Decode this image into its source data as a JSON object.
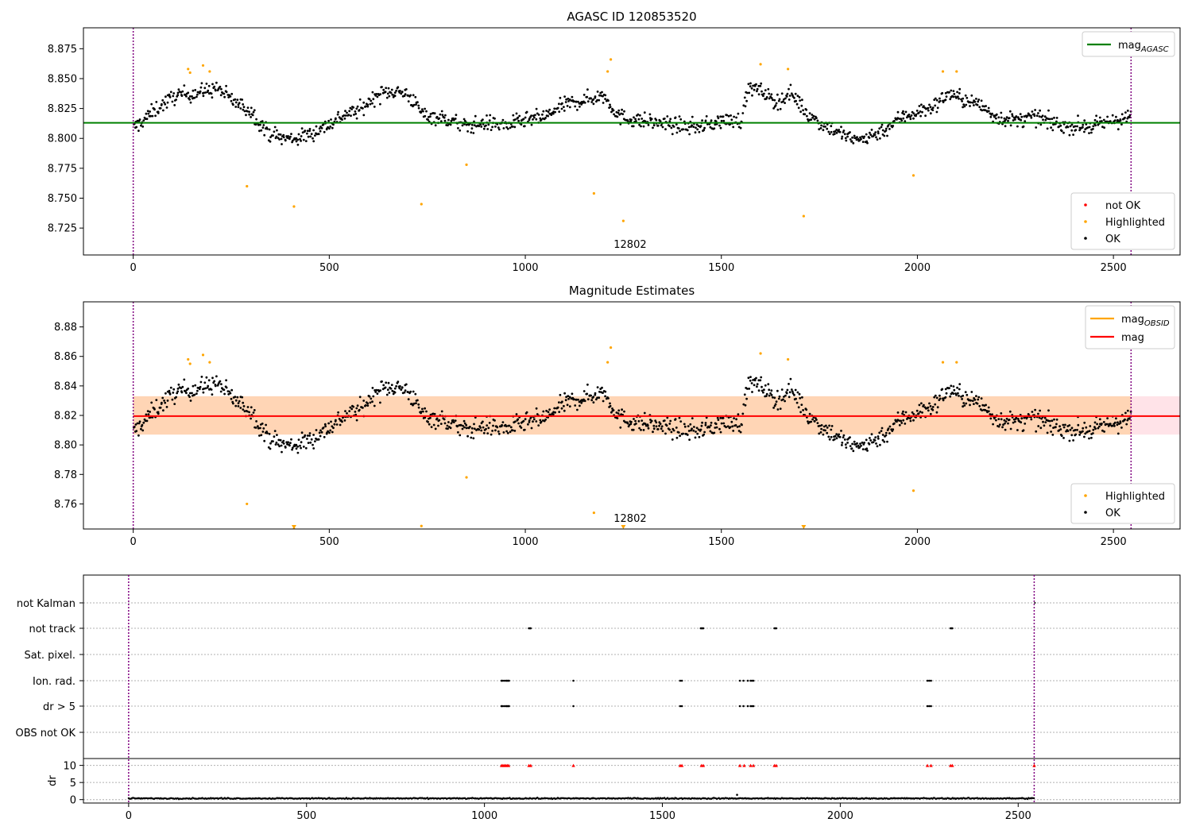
{
  "chart_data": [
    {
      "type": "scatter",
      "title": "AGASC ID 120853520",
      "xlim": [
        -127,
        2670
      ],
      "ylim": [
        8.7025,
        8.8925
      ],
      "xticks": [
        0,
        500,
        1000,
        1500,
        2000,
        2500
      ],
      "yticks": [
        8.725,
        8.75,
        8.775,
        8.8,
        8.825,
        8.85,
        8.875
      ],
      "ytick_decimals": 3,
      "vlines": [
        0,
        2545
      ],
      "hline": {
        "label": "mag_AGASC",
        "y": 8.813,
        "x": [
          -127,
          2670
        ],
        "color": "#008000"
      },
      "annotation": {
        "text": "12802",
        "x": 1270,
        "y": 8.7095
      },
      "legend_lines": [
        {
          "name": "mag",
          "sub": "AGASC",
          "color": "#008000"
        }
      ],
      "legend_points": [
        {
          "name": "not OK",
          "color": "#ff0000"
        },
        {
          "name": "Highlighted",
          "color": "#ffa500"
        },
        {
          "name": "OK",
          "color": "#000000"
        }
      ],
      "series": [
        {
          "name": "OK",
          "color": "#000000",
          "n_points": 2545,
          "x_range": [
            0,
            2545
          ],
          "segment_means": [
            [
              0,
              8.808
            ],
            [
              60,
              8.825
            ],
            [
              110,
              8.836
            ],
            [
              160,
              8.838
            ],
            [
              215,
              8.842
            ],
            [
              260,
              8.83
            ],
            [
              300,
              8.823
            ],
            [
              340,
              8.806
            ],
            [
              380,
              8.8
            ],
            [
              420,
              8.8
            ],
            [
              460,
              8.805
            ],
            [
              500,
              8.812
            ],
            [
              540,
              8.82
            ],
            [
              580,
              8.824
            ],
            [
              620,
              8.836
            ],
            [
              660,
              8.84
            ],
            [
              700,
              8.837
            ],
            [
              740,
              8.82
            ],
            [
              800,
              8.816
            ],
            [
              850,
              8.81
            ],
            [
              900,
              8.813
            ],
            [
              950,
              8.811
            ],
            [
              1000,
              8.815
            ],
            [
              1050,
              8.818
            ],
            [
              1100,
              8.828
            ],
            [
              1150,
              8.832
            ],
            [
              1200,
              8.836
            ],
            [
              1240,
              8.818
            ],
            [
              1290,
              8.815
            ],
            [
              1340,
              8.813
            ],
            [
              1400,
              8.81
            ],
            [
              1450,
              8.81
            ],
            [
              1500,
              8.815
            ],
            [
              1550,
              8.815
            ],
            [
              1570,
              8.843
            ],
            [
              1610,
              8.838
            ],
            [
              1640,
              8.83
            ],
            [
              1680,
              8.838
            ],
            [
              1720,
              8.82
            ],
            [
              1760,
              8.812
            ],
            [
              1800,
              8.805
            ],
            [
              1840,
              8.798
            ],
            [
              1880,
              8.802
            ],
            [
              1920,
              8.808
            ],
            [
              1960,
              8.818
            ],
            [
              2000,
              8.822
            ],
            [
              2040,
              8.826
            ],
            [
              2080,
              8.838
            ],
            [
              2120,
              8.832
            ],
            [
              2160,
              8.828
            ],
            [
              2200,
              8.818
            ],
            [
              2250,
              8.815
            ],
            [
              2300,
              8.818
            ],
            [
              2350,
              8.812
            ],
            [
              2400,
              8.81
            ],
            [
              2450,
              8.81
            ],
            [
              2500,
              8.815
            ],
            [
              2545,
              8.818
            ]
          ],
          "scatter": 0.006
        },
        {
          "name": "Highlighted",
          "color": "#ffa500",
          "points": [
            [
              140,
              8.858
            ],
            [
              145,
              8.855
            ],
            [
              178,
              8.861
            ],
            [
              195,
              8.856
            ],
            [
              290,
              8.76
            ],
            [
              410,
              8.743
            ],
            [
              735,
              8.745
            ],
            [
              850,
              8.778
            ],
            [
              1175,
              8.754
            ],
            [
              1210,
              8.856
            ],
            [
              1218,
              8.866
            ],
            [
              1250,
              8.731
            ],
            [
              1600,
              8.862
            ],
            [
              1670,
              8.858
            ],
            [
              1710,
              8.735
            ],
            [
              1990,
              8.769
            ],
            [
              2065,
              8.856
            ],
            [
              2100,
              8.856
            ]
          ]
        }
      ]
    },
    {
      "type": "scatter",
      "title": "Magnitude Estimates",
      "xlim": [
        -127,
        2670
      ],
      "ylim": [
        8.743,
        8.897
      ],
      "xticks": [
        0,
        500,
        1000,
        1500,
        2000,
        2500
      ],
      "yticks": [
        8.76,
        8.78,
        8.8,
        8.82,
        8.84,
        8.86,
        8.88
      ],
      "ytick_decimals": 2,
      "vlines": [
        0,
        2545
      ],
      "band": {
        "y_low": 8.807,
        "y_high": 8.833,
        "x": [
          0,
          2670
        ]
      },
      "hline": {
        "label": "mag",
        "y": 8.8195,
        "x": [
          0,
          2670
        ],
        "color": "#ff0000"
      },
      "annotation": {
        "text": "12802",
        "x": 1270,
        "y": 8.7465
      },
      "clipped_markers": [
        410,
        1250,
        1710
      ],
      "legend_lines": [
        {
          "name": "mag",
          "sub": "OBSID",
          "color": "#ffa500"
        },
        {
          "name": "mag",
          "sub": "",
          "color": "#ff0000"
        }
      ],
      "legend_points": [
        {
          "name": "Highlighted",
          "color": "#ffa500"
        },
        {
          "name": "OK",
          "color": "#000000"
        }
      ],
      "series": [
        {
          "name": "OK",
          "color": "#000000",
          "same_as_panel": 0
        },
        {
          "name": "Highlighted",
          "color": "#ffa500",
          "same_as_panel": 0
        }
      ]
    },
    {
      "type": "scatter",
      "title": "",
      "xlim": [
        -127,
        2955
      ],
      "xticks": [
        0,
        500,
        1000,
        1500,
        2000,
        2500
      ],
      "vlines": [
        0,
        2545
      ],
      "flag_rows": [
        "not Kalman",
        "not track",
        "Sat. pixel.",
        "Ion. rad.",
        "dr > 5",
        "OBS not OK"
      ],
      "flags": {
        "not track": [
          1125,
          1128,
          1130,
          1608,
          1610,
          1613,
          1615,
          1815,
          1818,
          1820,
          2310,
          2313,
          2315
        ],
        "Ion. rad.": [
          1048,
          1050,
          1055,
          1060,
          1063,
          1066,
          1069,
          1250,
          1550,
          1555,
          1718,
          1728,
          1740,
          1748,
          1752,
          1756,
          2245,
          2250,
          2255
        ],
        "dr > 5": [
          1048,
          1050,
          1055,
          1060,
          1063,
          1066,
          1069,
          1250,
          1550,
          1555,
          1718,
          1728,
          1740,
          1748,
          1752,
          1756,
          2245,
          2250,
          2255
        ]
      },
      "dr_ylabel": "dr",
      "dr_yticks": [
        0,
        5,
        10
      ],
      "dr_ylim": [
        -1,
        12
      ],
      "dr_ok": {
        "mean": 0.35,
        "spike": [
          1710,
          1.4
        ]
      },
      "dr_flagged_x": [
        1048,
        1052,
        1056,
        1060,
        1064,
        1068,
        1125,
        1130,
        1250,
        1550,
        1555,
        1610,
        1615,
        1718,
        1730,
        1748,
        1756,
        1815,
        1820,
        2245,
        2255,
        2310,
        2315,
        2545
      ]
    }
  ]
}
